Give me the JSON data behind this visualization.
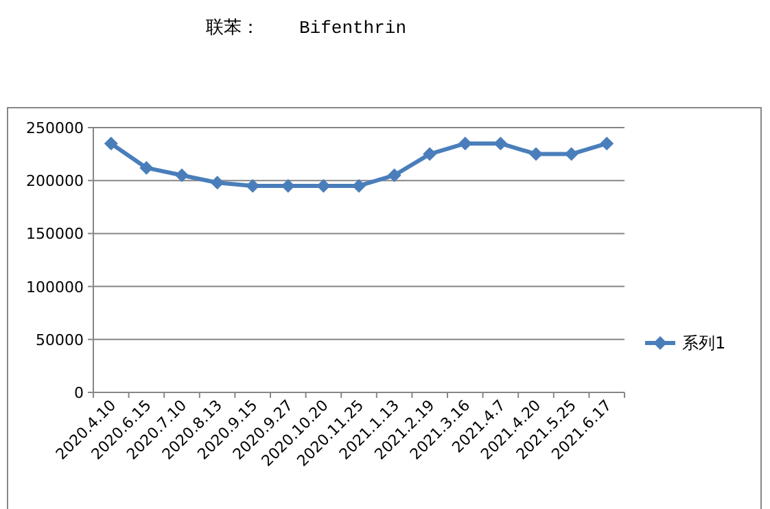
{
  "chart_data": {
    "type": "line",
    "title": "联苯：",
    "subtitle": "Bifenthrin",
    "categories": [
      "2020.4.10",
      "2020.6.15",
      "2020.7.10",
      "2020.8.13",
      "2020.9.15",
      "2020.9.27",
      "2020.10.20",
      "2020.11.25",
      "2021.1.13",
      "2021.2.19",
      "2021.3.16",
      "2021.4.7",
      "2021.4.20",
      "2021.5.25",
      "2021.6.17"
    ],
    "series": [
      {
        "name": "系列1",
        "color": "#4a7ebb",
        "values": [
          235000,
          212000,
          205000,
          198000,
          195000,
          195000,
          195000,
          195000,
          205000,
          225000,
          235000,
          235000,
          225000,
          225000,
          235000
        ]
      }
    ],
    "ylim": [
      0,
      250000
    ],
    "yticks": [
      0,
      50000,
      100000,
      150000,
      200000,
      250000
    ],
    "grid": "y",
    "legend": "right",
    "marker": "diamond",
    "line_style": "solid"
  }
}
